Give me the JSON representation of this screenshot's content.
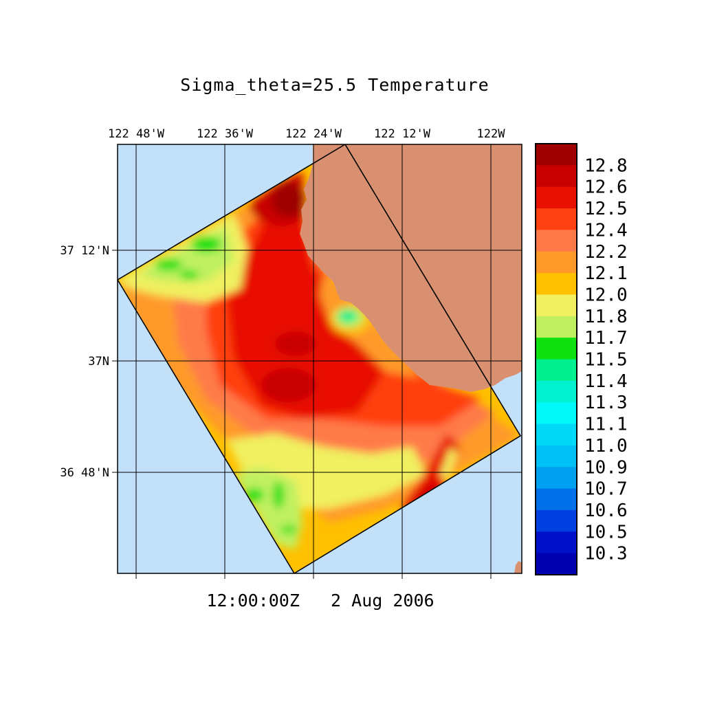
{
  "title": "Sigma_theta=25.5 Temperature",
  "timestamp": "12:00:00Z   2 Aug 2006",
  "colors": {
    "ocean": "#c2e0f8",
    "land": "#d99070",
    "grid": "#000000"
  },
  "lon_labels": [
    "122 48'W",
    "122 36'W",
    "122 24'W",
    "122 12'W",
    "122W"
  ],
  "lat_labels": [
    "37 12'N",
    "37N",
    "36 48'N"
  ],
  "colorbar": {
    "labels": [
      "12.8",
      "12.6",
      "12.5",
      "12.4",
      "12.2",
      "12.1",
      "12.0",
      "11.8",
      "11.7",
      "11.5",
      "11.4",
      "11.3",
      "11.1",
      "11.0",
      "10.9",
      "10.7",
      "10.6",
      "10.5",
      "10.3"
    ],
    "colors": [
      "#9e0000",
      "#c80000",
      "#e81000",
      "#ff4010",
      "#ff7a48",
      "#ff9a2a",
      "#ffc000",
      "#f0f060",
      "#c0f060",
      "#10e010",
      "#00f090",
      "#00f0d0",
      "#00f8f8",
      "#00d8f8",
      "#00c0f8",
      "#00a0f0",
      "#0070e8",
      "#0040e0",
      "#0010c8",
      "#0000b0"
    ]
  }
}
